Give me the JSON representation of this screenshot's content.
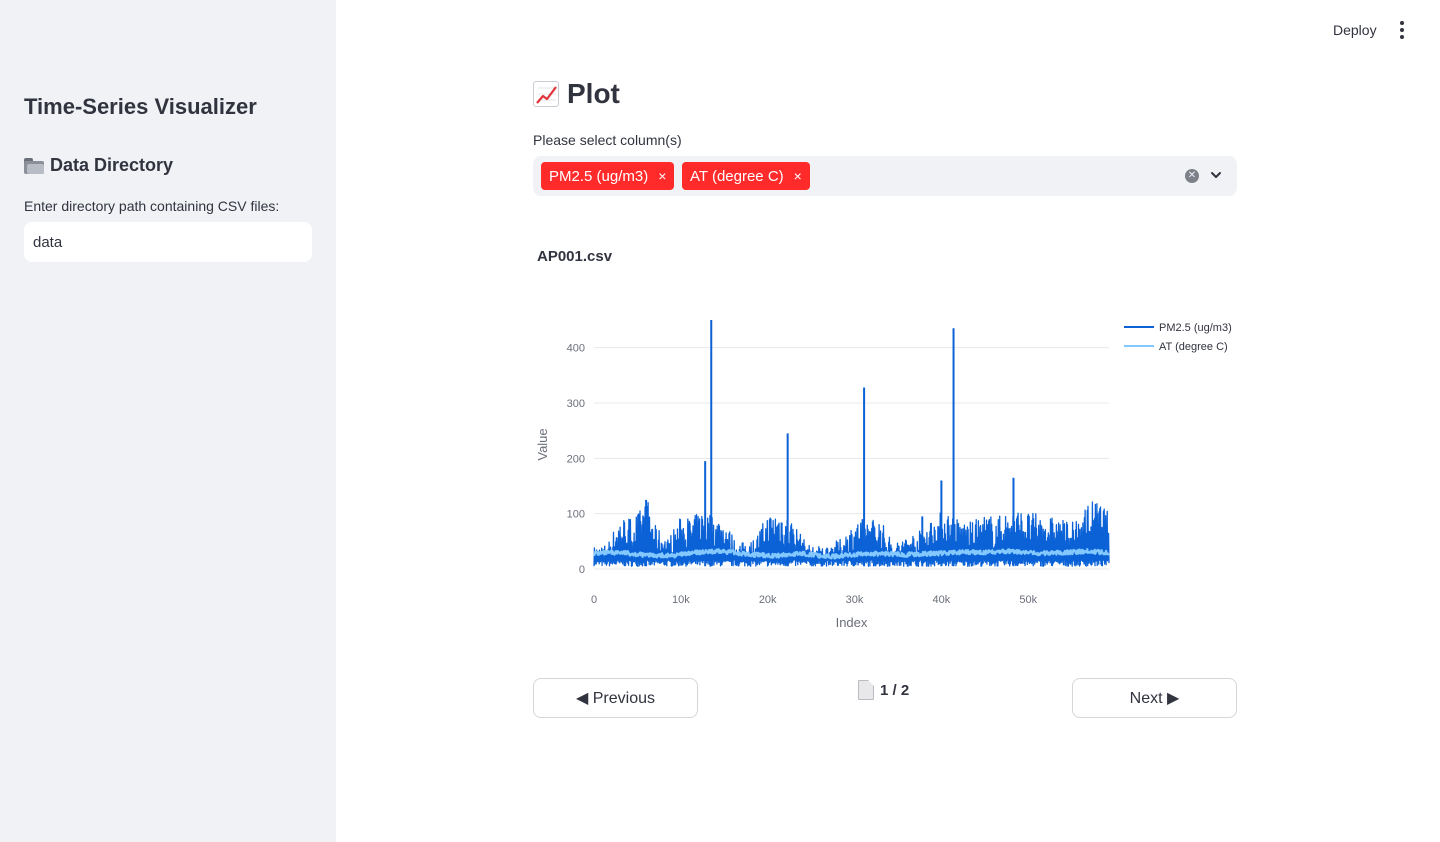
{
  "sidebar": {
    "title": "Time-Series Visualizer",
    "section_title": "Data Directory",
    "section_icon": "folder-icon",
    "input_label": "Enter directory path containing CSV files:",
    "input_value": "data"
  },
  "header": {
    "deploy_label": "Deploy",
    "menu_icon": "kebab-menu-icon"
  },
  "main": {
    "title": "Plot",
    "title_icon": "chart-increasing-icon",
    "select_label": "Please select column(s)",
    "selected_tags": [
      "PM2.5 (ug/m3)",
      "AT (degree C)"
    ],
    "tag_remove_glyph": "×",
    "file_name": "AP001.csv"
  },
  "pagination": {
    "previous_label": "◀ Previous",
    "next_label": "Next ▶",
    "page_text": "1 / 2",
    "current_page": 1,
    "total_pages": 2
  },
  "colors": {
    "accent": "#ff2b2b",
    "sidebar_bg": "#f0f2f6",
    "series_pm25": "#0b62d6",
    "series_at": "#83c9ff"
  },
  "chart_data": {
    "type": "line",
    "title": "AP001.csv",
    "xlabel": "Index",
    "ylabel": "Value",
    "xlim": [
      0,
      59300
    ],
    "ylim": [
      0,
      450
    ],
    "x_ticks": [
      0,
      10000,
      20000,
      30000,
      40000,
      50000
    ],
    "x_tick_labels": [
      "0",
      "10k",
      "20k",
      "30k",
      "40k",
      "50k"
    ],
    "y_ticks": [
      0,
      100,
      200,
      300,
      400
    ],
    "y_tick_labels": [
      "0",
      "100",
      "200",
      "300",
      "400"
    ],
    "legend_position": "top-right",
    "series": [
      {
        "name": "PM2.5 (ug/m3)",
        "color": "#0b62d6",
        "baseline": 5,
        "envelope": [
          [
            0,
            40
          ],
          [
            1500,
            45
          ],
          [
            3000,
            95
          ],
          [
            4500,
            95
          ],
          [
            5500,
            110
          ],
          [
            6200,
            125
          ],
          [
            7000,
            80
          ],
          [
            8500,
            55
          ],
          [
            10000,
            95
          ],
          [
            11500,
            95
          ],
          [
            12500,
            110
          ],
          [
            13500,
            100
          ],
          [
            15000,
            90
          ],
          [
            16500,
            45
          ],
          [
            18500,
            55
          ],
          [
            20000,
            100
          ],
          [
            21500,
            110
          ],
          [
            23000,
            85
          ],
          [
            24500,
            45
          ],
          [
            26500,
            40
          ],
          [
            28500,
            55
          ],
          [
            30000,
            85
          ],
          [
            31500,
            95
          ],
          [
            33000,
            90
          ],
          [
            34500,
            45
          ],
          [
            36000,
            60
          ],
          [
            37500,
            70
          ],
          [
            39000,
            95
          ],
          [
            40500,
            110
          ],
          [
            42000,
            90
          ],
          [
            43500,
            85
          ],
          [
            45000,
            100
          ],
          [
            46500,
            95
          ],
          [
            48000,
            110
          ],
          [
            49500,
            105
          ],
          [
            51000,
            100
          ],
          [
            52500,
            95
          ],
          [
            54000,
            90
          ],
          [
            55500,
            85
          ],
          [
            57000,
            125
          ],
          [
            58500,
            120
          ],
          [
            59300,
            100
          ]
        ],
        "peaks": [
          [
            12800,
            195
          ],
          [
            13500,
            450
          ],
          [
            22300,
            245
          ],
          [
            31100,
            328
          ],
          [
            40000,
            160
          ],
          [
            41400,
            435
          ],
          [
            48300,
            165
          ],
          [
            37800,
            95
          ],
          [
            6000,
            125
          ]
        ]
      },
      {
        "name": "AT (degree C)",
        "color": "#83c9ff",
        "values": [
          [
            0,
            28
          ],
          [
            3000,
            30
          ],
          [
            6000,
            25
          ],
          [
            9000,
            24
          ],
          [
            12000,
            30
          ],
          [
            15000,
            32
          ],
          [
            18000,
            26
          ],
          [
            21000,
            24
          ],
          [
            24000,
            28
          ],
          [
            27000,
            22
          ],
          [
            30000,
            26
          ],
          [
            33000,
            28
          ],
          [
            36000,
            26
          ],
          [
            39000,
            28
          ],
          [
            42000,
            30
          ],
          [
            45000,
            30
          ],
          [
            48000,
            32
          ],
          [
            51000,
            28
          ],
          [
            54000,
            30
          ],
          [
            57000,
            32
          ],
          [
            59300,
            30
          ]
        ]
      }
    ]
  }
}
